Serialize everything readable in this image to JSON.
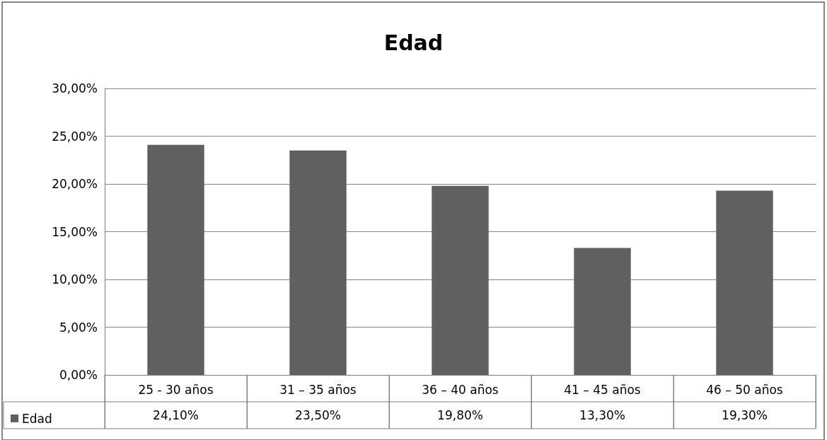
{
  "chart_data": {
    "type": "bar",
    "title": "Edad",
    "categories": [
      "25 - 30 años",
      "31 – 35 años",
      "36 – 40 años",
      "41 – 45 años",
      "46 – 50 años"
    ],
    "series": [
      {
        "name": "Edad",
        "color": "#606060",
        "values": [
          24.1,
          23.5,
          19.8,
          13.3,
          19.3
        ],
        "value_labels": [
          "24,10%",
          "23,50%",
          "19,80%",
          "13,30%",
          "19,30%"
        ]
      }
    ],
    "ylim": [
      0,
      30
    ],
    "yticks": [
      {
        "value": 0,
        "label": "0,00%"
      },
      {
        "value": 5,
        "label": "5,00%"
      },
      {
        "value": 10,
        "label": "10,00%"
      },
      {
        "value": 15,
        "label": "15,00%"
      },
      {
        "value": 20,
        "label": "20,00%"
      },
      {
        "value": 25,
        "label": "25,00%"
      },
      {
        "value": 30,
        "label": "30,00%"
      }
    ],
    "grid": "y",
    "legend": "bottom left"
  }
}
